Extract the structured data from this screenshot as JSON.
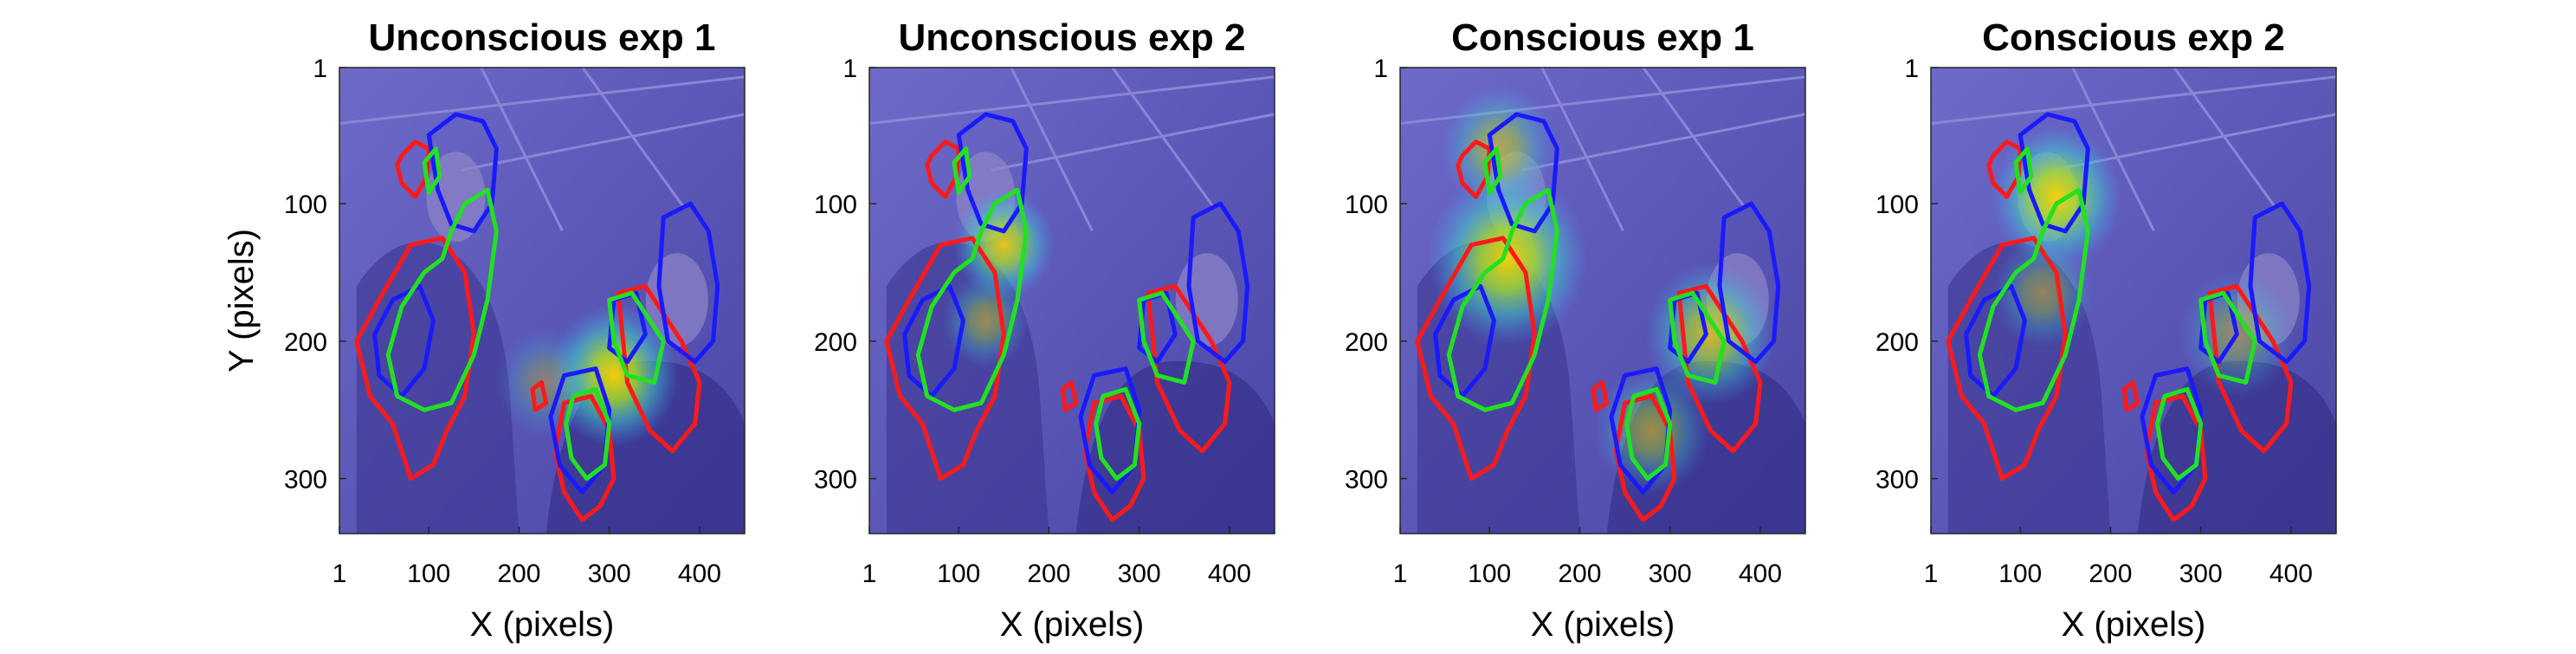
{
  "chart_data": [
    {
      "type": "heatmap",
      "title": "Unconscious exp 1",
      "xlabel": "X (pixels)",
      "ylabel": "Y (pixels)",
      "xlim": [
        1,
        450
      ],
      "ylim": [
        1,
        340
      ],
      "xticks": [
        1,
        100,
        200,
        300,
        400
      ],
      "yticks": [
        1,
        100,
        200,
        300
      ],
      "hotspots": [
        {
          "x": 305,
          "y": 225,
          "intensity": 1.0,
          "spread": 45
        },
        {
          "x": 230,
          "y": 230,
          "intensity": 0.35,
          "spread": 35
        }
      ]
    },
    {
      "type": "heatmap",
      "title": "Unconscious exp 2",
      "xlabel": "X (pixels)",
      "ylabel": "",
      "xlim": [
        1,
        450
      ],
      "ylim": [
        1,
        340
      ],
      "xticks": [
        1,
        100,
        200,
        300,
        400
      ],
      "yticks": [
        1,
        100,
        200,
        300
      ],
      "hotspots": [
        {
          "x": 150,
          "y": 130,
          "intensity": 0.9,
          "spread": 35
        },
        {
          "x": 130,
          "y": 185,
          "intensity": 0.5,
          "spread": 30
        }
      ]
    },
    {
      "type": "heatmap",
      "title": "Conscious exp 1",
      "xlabel": "X (pixels)",
      "ylabel": "",
      "xlim": [
        1,
        450
      ],
      "ylim": [
        1,
        340
      ],
      "xticks": [
        1,
        100,
        200,
        300,
        400
      ],
      "yticks": [
        1,
        100,
        200,
        300
      ],
      "hotspots": [
        {
          "x": 120,
          "y": 140,
          "intensity": 1.0,
          "spread": 55
        },
        {
          "x": 110,
          "y": 60,
          "intensity": 0.6,
          "spread": 40
        },
        {
          "x": 345,
          "y": 195,
          "intensity": 0.8,
          "spread": 45
        },
        {
          "x": 280,
          "y": 265,
          "intensity": 0.55,
          "spread": 40
        }
      ]
    },
    {
      "type": "heatmap",
      "title": "Conscious exp 2",
      "xlabel": "X (pixels)",
      "ylabel": "",
      "xlim": [
        1,
        450
      ],
      "ylim": [
        1,
        340
      ],
      "xticks": [
        1,
        100,
        200,
        300,
        400
      ],
      "yticks": [
        1,
        100,
        200,
        300
      ],
      "hotspots": [
        {
          "x": 140,
          "y": 95,
          "intensity": 1.0,
          "spread": 45
        },
        {
          "x": 125,
          "y": 165,
          "intensity": 0.45,
          "spread": 35
        },
        {
          "x": 340,
          "y": 195,
          "intensity": 0.45,
          "spread": 40
        }
      ]
    }
  ],
  "colors": {
    "background_overlay": "#5a55b8",
    "contour_red": "#ff1a1a",
    "contour_blue": "#1a1aff",
    "contour_green": "#22e022"
  }
}
